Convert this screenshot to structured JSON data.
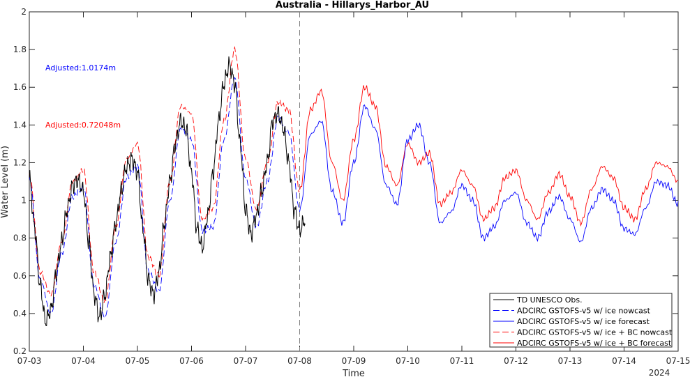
{
  "chart_data": {
    "type": "line",
    "title": "Australia - Hillarys_Harbor_AU",
    "xlabel": "Time",
    "ylabel": "Water Level (m)",
    "year_label": "2024",
    "x_ticks": [
      "07-03",
      "07-04",
      "07-05",
      "07-06",
      "07-07",
      "07-08",
      "07-09",
      "07-10",
      "07-11",
      "07-12",
      "07-13",
      "07-14",
      "07-15"
    ],
    "x_range_days": [
      0,
      12
    ],
    "ylim": [
      0.2,
      2.0
    ],
    "y_ticks": [
      "0.2",
      "0.4",
      "0.6",
      "0.8",
      "1",
      "1.2",
      "1.4",
      "1.6",
      "1.8",
      "2"
    ],
    "nowcast_forecast_divider_day": 5,
    "grid": false,
    "legend_position": "bottom-right",
    "annotations": [
      {
        "text": "Adjusted:1.0174m",
        "color": "#0000ff"
      },
      {
        "text": "Adjusted:0.72048m",
        "color": "#ff0000"
      }
    ],
    "series": [
      {
        "name": "TD UNESCO Obs.",
        "color": "#000000",
        "dash": "solid",
        "x": [
          0,
          0.1,
          0.2,
          0.3,
          0.4,
          0.5,
          0.6,
          0.7,
          0.8,
          0.9,
          1.0,
          1.1,
          1.2,
          1.3,
          1.4,
          1.5,
          1.6,
          1.7,
          1.8,
          1.9,
          2.0,
          2.1,
          2.2,
          2.3,
          2.4,
          2.5,
          2.6,
          2.7,
          2.8,
          2.9,
          3.0,
          3.1,
          3.2,
          3.3,
          3.4,
          3.5,
          3.6,
          3.7,
          3.8,
          3.9,
          4.0,
          4.1,
          4.2,
          4.3,
          4.4,
          4.5,
          4.6,
          4.7,
          4.8,
          4.9,
          5.0,
          5.1,
          5.2,
          5.3,
          5.4,
          5.5
        ],
        "y": [
          1.12,
          0.85,
          0.55,
          0.36,
          0.42,
          0.62,
          0.78,
          0.95,
          1.08,
          1.11,
          1.05,
          0.78,
          0.5,
          0.38,
          0.5,
          0.7,
          0.88,
          1.05,
          1.18,
          1.22,
          1.15,
          0.85,
          0.58,
          0.5,
          0.62,
          0.88,
          1.1,
          1.3,
          1.42,
          1.38,
          1.15,
          0.85,
          0.75,
          0.92,
          1.15,
          1.42,
          1.62,
          1.72,
          1.62,
          1.3,
          0.95,
          0.82,
          0.92,
          1.05,
          1.2,
          1.42,
          1.46,
          1.38,
          1.2,
          0.95,
          0.84,
          0.9,
          null,
          null,
          null,
          null
        ]
      },
      {
        "name": "ADCIRC GSTOFS-v5 w/ ice nowcast",
        "color": "#0000ff",
        "dash": "dashed",
        "x": [
          0,
          0.2,
          0.4,
          0.6,
          0.8,
          1.0,
          1.2,
          1.4,
          1.6,
          1.8,
          2.0,
          2.2,
          2.4,
          2.6,
          2.8,
          3.0,
          3.2,
          3.4,
          3.6,
          3.8,
          4.0,
          4.2,
          4.4,
          4.6,
          4.8,
          5.0
        ],
        "y": [
          1.12,
          0.58,
          0.4,
          0.72,
          1.02,
          1.07,
          0.55,
          0.38,
          0.78,
          1.12,
          1.18,
          0.62,
          0.52,
          1.0,
          1.38,
          1.32,
          0.84,
          0.86,
          1.32,
          1.65,
          1.12,
          0.86,
          1.1,
          1.44,
          1.36,
          0.95
        ]
      },
      {
        "name": "ADCIRC GSTOFS-v5 w/ ice forecast",
        "color": "#0000ff",
        "dash": "solid",
        "x": [
          5.0,
          5.2,
          5.4,
          5.6,
          5.8,
          6.0,
          6.2,
          6.4,
          6.6,
          6.8,
          7.0,
          7.2,
          7.4,
          7.6,
          7.8,
          8.0,
          8.2,
          8.4,
          8.6,
          8.8,
          9.0,
          9.2,
          9.4,
          9.6,
          9.8,
          10.0,
          10.2,
          10.4,
          10.6,
          10.8,
          11.0,
          11.2,
          11.4,
          11.6,
          11.8,
          12.0
        ],
        "y": [
          0.95,
          1.35,
          1.42,
          1.05,
          0.88,
          1.2,
          1.5,
          1.38,
          1.08,
          0.98,
          1.32,
          1.4,
          1.2,
          0.88,
          0.94,
          1.08,
          1.0,
          0.8,
          0.86,
          1.0,
          1.04,
          0.88,
          0.8,
          0.94,
          1.02,
          0.9,
          0.78,
          0.96,
          1.06,
          1.0,
          0.85,
          0.82,
          0.96,
          1.1,
          1.08,
          0.98
        ]
      },
      {
        "name": "ADCIRC GSTOFS-v5 w/ ice + BC nowcast",
        "color": "#ff0000",
        "dash": "dashed",
        "x": [
          0,
          0.2,
          0.4,
          0.6,
          0.8,
          1.0,
          1.2,
          1.4,
          1.6,
          1.8,
          2.0,
          2.2,
          2.4,
          2.6,
          2.8,
          3.0,
          3.2,
          3.4,
          3.6,
          3.8,
          4.0,
          4.2,
          4.4,
          4.6,
          4.8,
          5.0
        ],
        "y": [
          1.14,
          0.62,
          0.5,
          0.78,
          1.1,
          1.16,
          0.62,
          0.46,
          0.86,
          1.22,
          1.3,
          0.7,
          0.6,
          1.1,
          1.5,
          1.46,
          0.9,
          0.96,
          1.42,
          1.8,
          1.22,
          0.95,
          1.2,
          1.52,
          1.48,
          1.05
        ]
      },
      {
        "name": "ADCIRC GSTOFS-v5 w/ ice + BC forecast",
        "color": "#ff0000",
        "dash": "solid",
        "x": [
          5.0,
          5.2,
          5.4,
          5.6,
          5.8,
          6.0,
          6.2,
          6.4,
          6.6,
          6.8,
          7.0,
          7.2,
          7.4,
          7.6,
          7.8,
          8.0,
          8.2,
          8.4,
          8.6,
          8.8,
          9.0,
          9.2,
          9.4,
          9.6,
          9.8,
          10.0,
          10.2,
          10.4,
          10.6,
          10.8,
          11.0,
          11.2,
          11.4,
          11.6,
          11.8,
          12.0
        ],
        "y": [
          1.05,
          1.48,
          1.58,
          1.2,
          1.0,
          1.32,
          1.6,
          1.5,
          1.18,
          1.08,
          1.3,
          1.2,
          1.25,
          0.98,
          1.04,
          1.16,
          1.08,
          0.9,
          0.96,
          1.12,
          1.16,
          1.0,
          0.9,
          1.04,
          1.14,
          1.02,
          0.88,
          1.06,
          1.18,
          1.12,
          0.96,
          0.9,
          1.06,
          1.2,
          1.18,
          1.1
        ]
      }
    ]
  }
}
